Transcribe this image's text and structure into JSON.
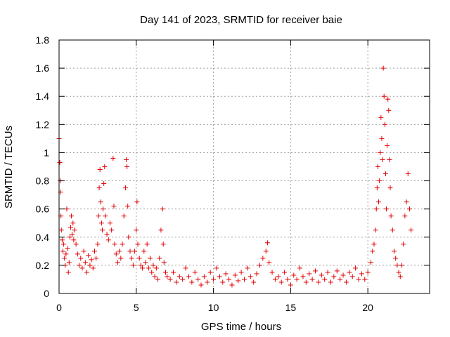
{
  "chart_data": {
    "type": "scatter",
    "title": "Day 141 of 2023, SRMTID for receiver baie",
    "xlabel": "GPS time / hours",
    "ylabel": "SRMTID / TECUs",
    "xlim": [
      0,
      24
    ],
    "ylim": [
      0,
      1.8
    ],
    "x_ticks": [
      0,
      5,
      10,
      15,
      20
    ],
    "x_tick_labels": [
      "0",
      "5",
      "10",
      "15",
      "20"
    ],
    "y_ticks": [
      0,
      0.2,
      0.4,
      0.6,
      0.8,
      1,
      1.2,
      1.4,
      1.6,
      1.8
    ],
    "y_tick_labels": [
      "0",
      "0.2",
      "0.4",
      "0.6",
      "0.8",
      "1",
      "1.2",
      "1.4",
      "1.6",
      "1.8"
    ],
    "grid": true,
    "marker": "+",
    "color": "#e00000",
    "series": [
      {
        "name": "SRMTID",
        "points": [
          [
            0.0,
            1.1
          ],
          [
            0.05,
            0.93
          ],
          [
            0.08,
            0.8
          ],
          [
            0.1,
            0.72
          ],
          [
            0.12,
            0.55
          ],
          [
            0.15,
            0.45
          ],
          [
            0.2,
            0.38
          ],
          [
            0.25,
            0.3
          ],
          [
            0.3,
            0.35
          ],
          [
            0.35,
            0.25
          ],
          [
            0.4,
            0.2
          ],
          [
            0.45,
            0.28
          ],
          [
            0.5,
            0.6
          ],
          [
            0.55,
            0.32
          ],
          [
            0.6,
            0.15
          ],
          [
            0.65,
            0.22
          ],
          [
            0.7,
            0.4
          ],
          [
            0.75,
            0.47
          ],
          [
            0.8,
            0.55
          ],
          [
            0.85,
            0.42
          ],
          [
            0.9,
            0.5
          ],
          [
            0.95,
            0.38
          ],
          [
            1.0,
            0.45
          ],
          [
            1.1,
            0.35
          ],
          [
            1.2,
            0.28
          ],
          [
            1.3,
            0.2
          ],
          [
            1.4,
            0.25
          ],
          [
            1.5,
            0.18
          ],
          [
            1.6,
            0.3
          ],
          [
            1.7,
            0.22
          ],
          [
            1.8,
            0.15
          ],
          [
            1.9,
            0.27
          ],
          [
            2.0,
            0.2
          ],
          [
            2.1,
            0.24
          ],
          [
            2.2,
            0.18
          ],
          [
            2.3,
            0.3
          ],
          [
            2.4,
            0.25
          ],
          [
            2.5,
            0.35
          ],
          [
            2.55,
            0.55
          ],
          [
            2.6,
            0.75
          ],
          [
            2.65,
            0.88
          ],
          [
            2.7,
            0.65
          ],
          [
            2.75,
            0.5
          ],
          [
            2.8,
            0.45
          ],
          [
            2.85,
            0.6
          ],
          [
            2.9,
            0.78
          ],
          [
            2.95,
            0.9
          ],
          [
            3.0,
            0.55
          ],
          [
            3.1,
            0.42
          ],
          [
            3.2,
            0.38
          ],
          [
            3.3,
            0.5
          ],
          [
            3.4,
            0.45
          ],
          [
            3.5,
            0.96
          ],
          [
            3.55,
            0.62
          ],
          [
            3.6,
            0.35
          ],
          [
            3.7,
            0.28
          ],
          [
            3.8,
            0.22
          ],
          [
            3.9,
            0.3
          ],
          [
            4.0,
            0.25
          ],
          [
            4.1,
            0.35
          ],
          [
            4.2,
            0.55
          ],
          [
            4.3,
            0.75
          ],
          [
            4.35,
            0.95
          ],
          [
            4.4,
            0.9
          ],
          [
            4.45,
            0.62
          ],
          [
            4.5,
            0.4
          ],
          [
            4.6,
            0.3
          ],
          [
            4.7,
            0.25
          ],
          [
            4.8,
            0.2
          ],
          [
            4.9,
            0.3
          ],
          [
            5.0,
            0.45
          ],
          [
            5.05,
            0.65
          ],
          [
            5.1,
            0.35
          ],
          [
            5.2,
            0.25
          ],
          [
            5.3,
            0.2
          ],
          [
            5.4,
            0.18
          ],
          [
            5.5,
            0.3
          ],
          [
            5.6,
            0.22
          ],
          [
            5.7,
            0.35
          ],
          [
            5.8,
            0.18
          ],
          [
            5.9,
            0.25
          ],
          [
            6.0,
            0.15
          ],
          [
            6.1,
            0.2
          ],
          [
            6.2,
            0.12
          ],
          [
            6.3,
            0.18
          ],
          [
            6.4,
            0.1
          ],
          [
            6.5,
            0.25
          ],
          [
            6.6,
            0.45
          ],
          [
            6.7,
            0.6
          ],
          [
            6.75,
            0.35
          ],
          [
            6.8,
            0.22
          ],
          [
            6.9,
            0.15
          ],
          [
            7.0,
            0.12
          ],
          [
            7.2,
            0.1
          ],
          [
            7.4,
            0.15
          ],
          [
            7.6,
            0.08
          ],
          [
            7.8,
            0.12
          ],
          [
            8.0,
            0.1
          ],
          [
            8.2,
            0.18
          ],
          [
            8.4,
            0.12
          ],
          [
            8.6,
            0.08
          ],
          [
            8.8,
            0.15
          ],
          [
            9.0,
            0.1
          ],
          [
            9.2,
            0.06
          ],
          [
            9.4,
            0.12
          ],
          [
            9.6,
            0.08
          ],
          [
            9.8,
            0.15
          ],
          [
            10.0,
            0.1
          ],
          [
            10.2,
            0.18
          ],
          [
            10.4,
            0.12
          ],
          [
            10.6,
            0.08
          ],
          [
            10.8,
            0.14
          ],
          [
            11.0,
            0.1
          ],
          [
            11.2,
            0.06
          ],
          [
            11.4,
            0.13
          ],
          [
            11.6,
            0.09
          ],
          [
            11.8,
            0.15
          ],
          [
            12.0,
            0.1
          ],
          [
            12.2,
            0.18
          ],
          [
            12.4,
            0.12
          ],
          [
            12.6,
            0.08
          ],
          [
            12.8,
            0.14
          ],
          [
            13.0,
            0.2
          ],
          [
            13.2,
            0.25
          ],
          [
            13.4,
            0.3
          ],
          [
            13.5,
            0.36
          ],
          [
            13.6,
            0.22
          ],
          [
            13.8,
            0.15
          ],
          [
            14.0,
            0.1
          ],
          [
            14.2,
            0.12
          ],
          [
            14.4,
            0.08
          ],
          [
            14.6,
            0.15
          ],
          [
            14.8,
            0.1
          ],
          [
            15.0,
            0.06
          ],
          [
            15.2,
            0.13
          ],
          [
            15.4,
            0.1
          ],
          [
            15.6,
            0.18
          ],
          [
            15.8,
            0.12
          ],
          [
            16.0,
            0.08
          ],
          [
            16.2,
            0.14
          ],
          [
            16.4,
            0.1
          ],
          [
            16.6,
            0.16
          ],
          [
            16.8,
            0.08
          ],
          [
            17.0,
            0.13
          ],
          [
            17.2,
            0.1
          ],
          [
            17.4,
            0.15
          ],
          [
            17.6,
            0.08
          ],
          [
            17.8,
            0.12
          ],
          [
            18.0,
            0.16
          ],
          [
            18.2,
            0.1
          ],
          [
            18.4,
            0.13
          ],
          [
            18.6,
            0.08
          ],
          [
            18.8,
            0.15
          ],
          [
            19.0,
            0.12
          ],
          [
            19.2,
            0.18
          ],
          [
            19.4,
            0.1
          ],
          [
            19.6,
            0.14
          ],
          [
            19.8,
            0.1
          ],
          [
            20.0,
            0.15
          ],
          [
            20.2,
            0.22
          ],
          [
            20.3,
            0.3
          ],
          [
            20.4,
            0.35
          ],
          [
            20.5,
            0.45
          ],
          [
            20.55,
            0.6
          ],
          [
            20.6,
            0.75
          ],
          [
            20.65,
            0.9
          ],
          [
            20.7,
            0.65
          ],
          [
            20.75,
            0.8
          ],
          [
            20.8,
            1.0
          ],
          [
            20.85,
            1.25
          ],
          [
            20.9,
            1.1
          ],
          [
            20.95,
            0.95
          ],
          [
            21.0,
            1.6
          ],
          [
            21.05,
            1.4
          ],
          [
            21.1,
            1.2
          ],
          [
            21.15,
            0.85
          ],
          [
            21.2,
            0.6
          ],
          [
            21.25,
            1.05
          ],
          [
            21.3,
            1.38
          ],
          [
            21.35,
            1.3
          ],
          [
            21.4,
            0.95
          ],
          [
            21.45,
            0.75
          ],
          [
            21.5,
            0.55
          ],
          [
            21.6,
            0.45
          ],
          [
            21.7,
            0.3
          ],
          [
            21.8,
            0.25
          ],
          [
            21.9,
            0.2
          ],
          [
            22.0,
            0.15
          ],
          [
            22.1,
            0.12
          ],
          [
            22.2,
            0.2
          ],
          [
            22.3,
            0.35
          ],
          [
            22.4,
            0.55
          ],
          [
            22.5,
            0.65
          ],
          [
            22.6,
            0.85
          ],
          [
            22.7,
            0.6
          ],
          [
            22.8,
            0.45
          ]
        ]
      }
    ]
  }
}
